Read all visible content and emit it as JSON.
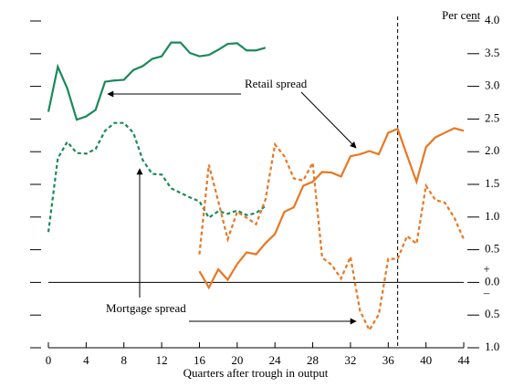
{
  "chart_data": {
    "type": "line",
    "x_label": "Quarters after trough in output",
    "y_unit_label": "Per cent",
    "zero_markers": {
      "above": "+",
      "below": "–"
    },
    "annotations": [
      "Retail spread",
      "Mortgage spread"
    ],
    "xlim": [
      0,
      44
    ],
    "xticks": [
      0,
      4,
      8,
      12,
      16,
      20,
      24,
      28,
      32,
      36,
      40,
      44
    ],
    "ylim": [
      -1,
      4
    ],
    "yticks": [
      {
        "value": -1,
        "label": "1.0"
      },
      {
        "value": -0.5,
        "label": "0.5"
      },
      {
        "value": 0,
        "label": "0.0"
      },
      0.5,
      {
        "value": 1,
        "label": "1.0"
      },
      1.5,
      {
        "value": 2,
        "label": "2.0"
      },
      2.5,
      {
        "value": 3,
        "label": "3.0"
      },
      3.5,
      {
        "value": 4,
        "label": "4.0"
      }
    ],
    "zero_line": true,
    "vline": 37,
    "series": [
      {
        "color": "#1a8a5a",
        "dash": false,
        "x": [
          0,
          1,
          2,
          3,
          4,
          5,
          6,
          7,
          8,
          9,
          10,
          11,
          12,
          13,
          14,
          15,
          16,
          17,
          18,
          19,
          20,
          21,
          22,
          23
        ],
        "values": [
          2.61,
          3.3,
          2.97,
          2.49,
          2.54,
          2.64,
          3.07,
          3.09,
          3.1,
          3.25,
          3.31,
          3.42,
          3.46,
          3.67,
          3.67,
          3.51,
          3.46,
          3.48,
          3.56,
          3.65,
          3.66,
          3.55,
          3.55,
          3.59
        ]
      },
      {
        "color": "#1a8a5a",
        "dash": true,
        "x": [
          0,
          1,
          2,
          3,
          4,
          5,
          6,
          7,
          8,
          9,
          10,
          11,
          12,
          13,
          14,
          15,
          16,
          17,
          18,
          19,
          20,
          21,
          22,
          23
        ],
        "values": [
          0.77,
          1.9,
          2.15,
          1.98,
          1.97,
          2.04,
          2.32,
          2.44,
          2.44,
          2.29,
          1.87,
          1.66,
          1.65,
          1.44,
          1.37,
          1.3,
          1.24,
          0.99,
          1.09,
          1.05,
          1.1,
          1.03,
          1.06,
          1.17
        ]
      },
      {
        "color": "#e87722",
        "dash": false,
        "x": [
          16,
          17,
          18,
          19,
          20,
          21,
          22,
          23,
          24,
          25,
          26,
          27,
          28,
          29,
          30,
          31,
          32,
          33,
          34,
          35,
          36,
          37,
          38,
          39,
          40,
          41,
          42,
          43,
          44
        ],
        "values": [
          0.17,
          -0.08,
          0.2,
          0.04,
          0.28,
          0.46,
          0.43,
          0.6,
          0.74,
          1.08,
          1.15,
          1.48,
          1.54,
          1.69,
          1.68,
          1.62,
          1.93,
          1.96,
          2.01,
          1.96,
          2.29,
          2.35,
          1.94,
          1.54,
          2.07,
          2.22,
          2.29,
          2.36,
          2.32
        ]
      },
      {
        "color": "#e87722",
        "dash": true,
        "x": [
          16,
          17,
          18,
          19,
          20,
          21,
          22,
          23,
          24,
          25,
          26,
          27,
          28,
          29,
          30,
          31,
          32,
          33,
          34,
          35,
          36,
          37,
          38,
          39,
          40,
          41,
          42,
          43,
          44
        ],
        "values": [
          0.43,
          1.8,
          1.24,
          0.66,
          1.08,
          0.99,
          0.89,
          1.27,
          2.11,
          1.93,
          1.59,
          1.56,
          1.83,
          0.38,
          0.27,
          0.06,
          0.39,
          -0.43,
          -0.73,
          -0.49,
          0.36,
          0.36,
          0.71,
          0.59,
          1.48,
          1.26,
          1.22,
          0.99,
          0.66
        ]
      }
    ]
  }
}
